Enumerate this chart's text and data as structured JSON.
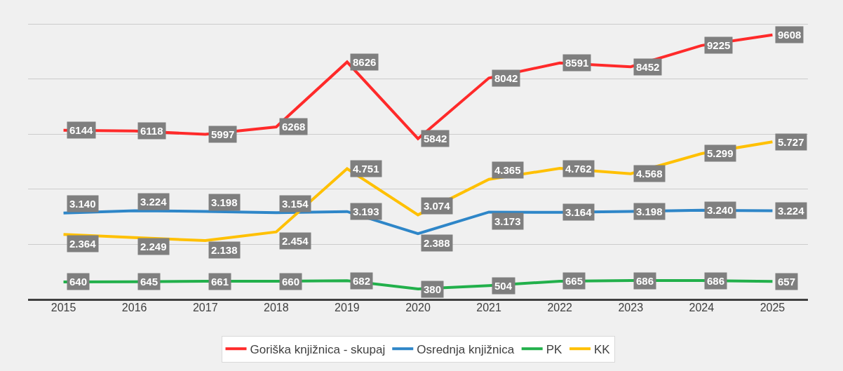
{
  "chart_data": {
    "type": "line",
    "categories": [
      "2015",
      "2016",
      "2017",
      "2018",
      "2019",
      "2020",
      "2021",
      "2022",
      "2023",
      "2024",
      "2025"
    ],
    "series": [
      {
        "name": "Goriška knjižnica - skupaj",
        "color": "#ff2a2a",
        "values": [
          6144,
          6118,
          5997,
          6268,
          8626,
          5842,
          8042,
          8591,
          8452,
          9225,
          9608
        ],
        "value_labels": [
          "6144",
          "6118",
          "5997",
          "6268",
          "8626",
          "5842",
          "8042",
          "8591",
          "8452",
          "9225",
          "9608"
        ]
      },
      {
        "name": "Osrednja knjižnica",
        "color": "#2e86c8",
        "values": [
          3140,
          3224,
          3198,
          3154,
          3193,
          2388,
          3173,
          3164,
          3198,
          3240,
          3224
        ],
        "value_labels": [
          "3.140",
          "3.224",
          "3.198",
          "3.154",
          "3.193",
          "2.388",
          "3.173",
          "3.164",
          "3.198",
          "3.240",
          "3.224"
        ]
      },
      {
        "name": "PK",
        "color": "#22b04b",
        "values": [
          640,
          645,
          661,
          660,
          682,
          380,
          504,
          665,
          686,
          686,
          657
        ],
        "value_labels": [
          "640",
          "645",
          "661",
          "660",
          "682",
          "380",
          "504",
          "665",
          "686",
          "686",
          "657"
        ]
      },
      {
        "name": "KK",
        "color": "#ffc000",
        "values": [
          2364,
          2249,
          2138,
          2454,
          4751,
          3074,
          4365,
          4762,
          4568,
          5299,
          5727
        ],
        "value_labels": [
          "2.364",
          "2.249",
          "2.138",
          "2.454",
          "4.751",
          "3.074",
          "4.365",
          "4.762",
          "4.568",
          "5.299",
          "5.727"
        ]
      }
    ],
    "tick_labels": "x",
    "grid": "y",
    "legend": "bottom",
    "marker": "none",
    "line_style": "solid"
  }
}
